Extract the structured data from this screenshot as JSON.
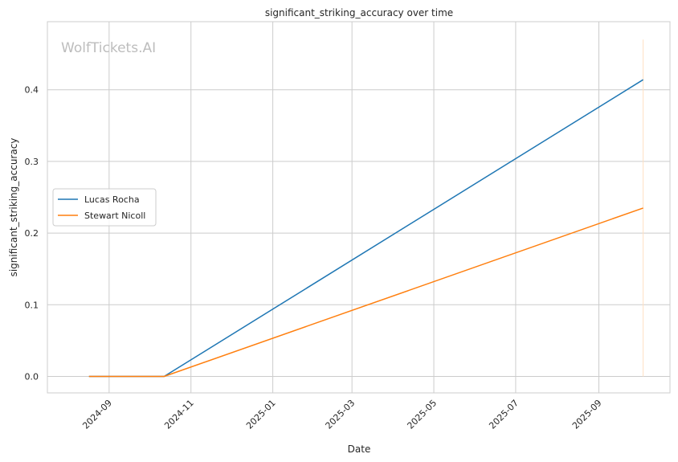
{
  "watermark": "WolfTickets.AI",
  "chart_data": {
    "type": "line",
    "title": "significant_striking_accuracy over time",
    "xlabel": "Date",
    "ylabel": "significant_striking_accuracy",
    "xlim": [
      "2024-07-17",
      "2025-10-24"
    ],
    "ylim": [
      -0.023,
      0.495
    ],
    "x_ticks": [
      "2024-09-01",
      "2024-11-01",
      "2025-01-01",
      "2025-03-01",
      "2025-05-01",
      "2025-07-01",
      "2025-09-01"
    ],
    "x_tick_labels": [
      "2024-09",
      "2024-11",
      "2025-01",
      "2025-03",
      "2025-05",
      "2025-07",
      "2025-09"
    ],
    "y_ticks": [
      0.0,
      0.1,
      0.2,
      0.3,
      0.4
    ],
    "y_tick_labels": [
      "0.0",
      "0.1",
      "0.2",
      "0.3",
      "0.4"
    ],
    "grid": true,
    "legend_position": "center-left",
    "series": [
      {
        "name": "Lucas Rocha",
        "color": "#1f77b4",
        "x": [
          "2024-08-17",
          "2024-10-12",
          "2025-10-04"
        ],
        "y": [
          0.0,
          0.0,
          0.414
        ]
      },
      {
        "name": "Stewart Nicoll",
        "color": "#ff7f0e",
        "x": [
          "2024-08-17",
          "2024-10-12",
          "2025-10-04"
        ],
        "y": [
          0.0,
          0.0,
          0.235
        ]
      }
    ],
    "annotations": [
      {
        "type": "vline",
        "x": "2025-10-04",
        "y_range": [
          0.0,
          0.47
        ],
        "color": "#ffe0c2"
      }
    ]
  }
}
